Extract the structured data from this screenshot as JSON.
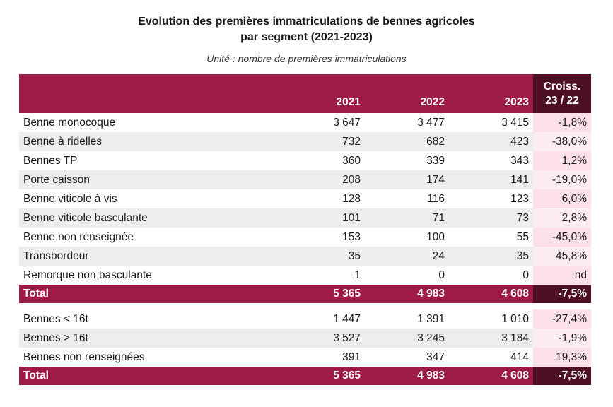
{
  "title_line1": "Evolution des premières immatriculations de bennes agricoles",
  "title_line2": "par segment (2021-2023)",
  "subtitle": "Unité : nombre de premières immatriculations",
  "chart_data": {
    "type": "table",
    "columns": [
      "",
      "2021",
      "2022",
      "2023",
      "Croiss. 23 / 22"
    ],
    "section1": [
      {
        "label": "Benne monocoque",
        "y2021": "3 647",
        "y2022": "3 477",
        "y2023": "3 415",
        "growth": "-1,8%"
      },
      {
        "label": "Benne à ridelles",
        "y2021": "732",
        "y2022": "682",
        "y2023": "423",
        "growth": "-38,0%"
      },
      {
        "label": "Bennes TP",
        "y2021": "360",
        "y2022": "339",
        "y2023": "343",
        "growth": "1,2%"
      },
      {
        "label": "Porte caisson",
        "y2021": "208",
        "y2022": "174",
        "y2023": "141",
        "growth": "-19,0%"
      },
      {
        "label": "Benne viticole à vis",
        "y2021": "128",
        "y2022": "116",
        "y2023": "123",
        "growth": "6,0%"
      },
      {
        "label": "Benne viticole basculante",
        "y2021": "101",
        "y2022": "71",
        "y2023": "73",
        "growth": "2,8%"
      },
      {
        "label": "Benne non renseignée",
        "y2021": "153",
        "y2022": "100",
        "y2023": "55",
        "growth": "-45,0%"
      },
      {
        "label": "Transbordeur",
        "y2021": "35",
        "y2022": "24",
        "y2023": "35",
        "growth": "45,8%"
      },
      {
        "label": "Remorque non basculante",
        "y2021": "1",
        "y2022": "0",
        "y2023": "0",
        "growth": "nd"
      }
    ],
    "total1": {
      "label": "Total",
      "y2021": "5 365",
      "y2022": "4 983",
      "y2023": "4 608",
      "growth": "-7,5%"
    },
    "section2": [
      {
        "label": "Bennes < 16t",
        "y2021": "1 447",
        "y2022": "1 391",
        "y2023": "1 010",
        "growth": "-27,4%"
      },
      {
        "label": "Bennes > 16t",
        "y2021": "3 527",
        "y2022": "3 245",
        "y2023": "3 184",
        "growth": "-1,9%"
      },
      {
        "label": "Bennes non renseignées",
        "y2021": "391",
        "y2022": "347",
        "y2023": "414",
        "growth": "19,3%"
      }
    ],
    "total2": {
      "label": "Total",
      "y2021": "5 365",
      "y2022": "4 983",
      "y2023": "4 608",
      "growth": "-7,5%"
    }
  },
  "colors": {
    "header": "#9e1b45",
    "header_dark": "#4d0f23",
    "growth_tint": "#fbe0e7",
    "stripe": "#ededed"
  }
}
